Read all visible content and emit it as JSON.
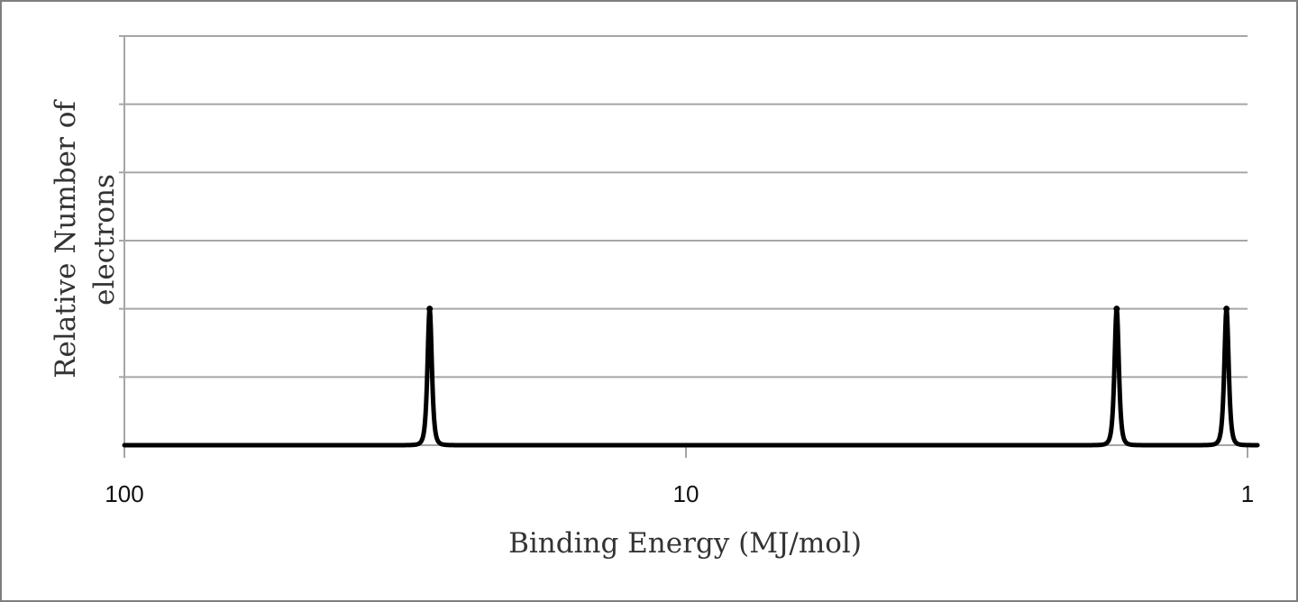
{
  "chart_data": {
    "type": "line",
    "title": "",
    "xlabel": "Binding Energy (MJ/mol)",
    "ylabel_lines": [
      "Relative Number of",
      "electrons"
    ],
    "x_scale": "log",
    "x_reversed": true,
    "xlim": [
      100,
      1
    ],
    "ylim": [
      0,
      6
    ],
    "x_ticks": [
      {
        "value": 100,
        "label": "100"
      },
      {
        "value": 10,
        "label": "10"
      },
      {
        "value": 1,
        "label": "1"
      }
    ],
    "gridlines": "horizontal",
    "y_tick_labels": false,
    "legend": "none",
    "line_color": "#000000",
    "grid_color": "#a6a6a6",
    "peaks": [
      {
        "x": 28.6,
        "y": 2
      },
      {
        "x": 1.71,
        "y": 2
      },
      {
        "x": 1.09,
        "y": 2
      }
    ]
  }
}
